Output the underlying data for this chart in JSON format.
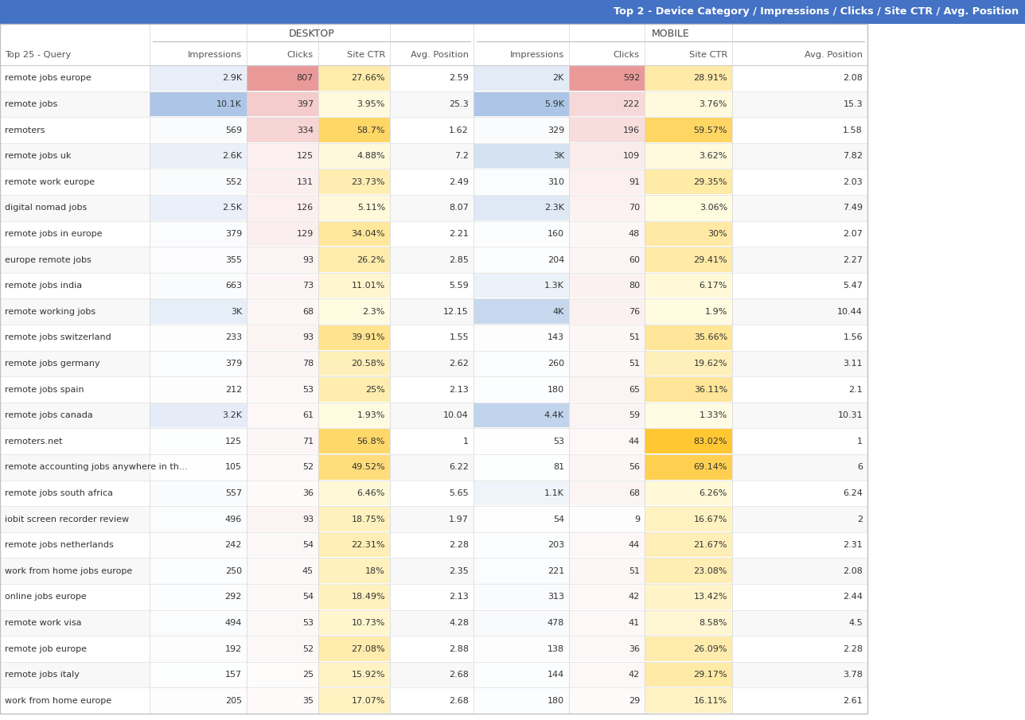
{
  "title": "Top 2 - Device Category / Impressions / Clicks / Site CTR / Avg. Position",
  "title_bg": "#4472c4",
  "title_fg": "#ffffff",
  "desktop_label": "DESKTOP",
  "mobile_label": "MOBILE",
  "columns": [
    "Impressions",
    "Clicks",
    "Site CTR",
    "Avg. Position",
    "Impressions",
    "Clicks",
    "Site CTR",
    "Avg. Position"
  ],
  "rows": [
    {
      "query": "remote jobs europe",
      "d_imp": "2.9K",
      "d_clk": "807",
      "d_ctr": "27.66%",
      "d_pos": "2.59",
      "m_imp": "2K",
      "m_clk": "592",
      "m_ctr": "28.91%",
      "m_pos": "2.08"
    },
    {
      "query": "remote jobs",
      "d_imp": "10.1K",
      "d_clk": "397",
      "d_ctr": "3.95%",
      "d_pos": "25.3",
      "m_imp": "5.9K",
      "m_clk": "222",
      "m_ctr": "3.76%",
      "m_pos": "15.3"
    },
    {
      "query": "remoters",
      "d_imp": "569",
      "d_clk": "334",
      "d_ctr": "58.7%",
      "d_pos": "1.62",
      "m_imp": "329",
      "m_clk": "196",
      "m_ctr": "59.57%",
      "m_pos": "1.58"
    },
    {
      "query": "remote jobs uk",
      "d_imp": "2.6K",
      "d_clk": "125",
      "d_ctr": "4.88%",
      "d_pos": "7.2",
      "m_imp": "3K",
      "m_clk": "109",
      "m_ctr": "3.62%",
      "m_pos": "7.82"
    },
    {
      "query": "remote work europe",
      "d_imp": "552",
      "d_clk": "131",
      "d_ctr": "23.73%",
      "d_pos": "2.49",
      "m_imp": "310",
      "m_clk": "91",
      "m_ctr": "29.35%",
      "m_pos": "2.03"
    },
    {
      "query": "digital nomad jobs",
      "d_imp": "2.5K",
      "d_clk": "126",
      "d_ctr": "5.11%",
      "d_pos": "8.07",
      "m_imp": "2.3K",
      "m_clk": "70",
      "m_ctr": "3.06%",
      "m_pos": "7.49"
    },
    {
      "query": "remote jobs in europe",
      "d_imp": "379",
      "d_clk": "129",
      "d_ctr": "34.04%",
      "d_pos": "2.21",
      "m_imp": "160",
      "m_clk": "48",
      "m_ctr": "30%",
      "m_pos": "2.07"
    },
    {
      "query": "europe remote jobs",
      "d_imp": "355",
      "d_clk": "93",
      "d_ctr": "26.2%",
      "d_pos": "2.85",
      "m_imp": "204",
      "m_clk": "60",
      "m_ctr": "29.41%",
      "m_pos": "2.27"
    },
    {
      "query": "remote jobs india",
      "d_imp": "663",
      "d_clk": "73",
      "d_ctr": "11.01%",
      "d_pos": "5.59",
      "m_imp": "1.3K",
      "m_clk": "80",
      "m_ctr": "6.17%",
      "m_pos": "5.47"
    },
    {
      "query": "remote working jobs",
      "d_imp": "3K",
      "d_clk": "68",
      "d_ctr": "2.3%",
      "d_pos": "12.15",
      "m_imp": "4K",
      "m_clk": "76",
      "m_ctr": "1.9%",
      "m_pos": "10.44"
    },
    {
      "query": "remote jobs switzerland",
      "d_imp": "233",
      "d_clk": "93",
      "d_ctr": "39.91%",
      "d_pos": "1.55",
      "m_imp": "143",
      "m_clk": "51",
      "m_ctr": "35.66%",
      "m_pos": "1.56"
    },
    {
      "query": "remote jobs germany",
      "d_imp": "379",
      "d_clk": "78",
      "d_ctr": "20.58%",
      "d_pos": "2.62",
      "m_imp": "260",
      "m_clk": "51",
      "m_ctr": "19.62%",
      "m_pos": "3.11"
    },
    {
      "query": "remote jobs spain",
      "d_imp": "212",
      "d_clk": "53",
      "d_ctr": "25%",
      "d_pos": "2.13",
      "m_imp": "180",
      "m_clk": "65",
      "m_ctr": "36.11%",
      "m_pos": "2.1"
    },
    {
      "query": "remote jobs canada",
      "d_imp": "3.2K",
      "d_clk": "61",
      "d_ctr": "1.93%",
      "d_pos": "10.04",
      "m_imp": "4.4K",
      "m_clk": "59",
      "m_ctr": "1.33%",
      "m_pos": "10.31"
    },
    {
      "query": "remoters.net",
      "d_imp": "125",
      "d_clk": "71",
      "d_ctr": "56.8%",
      "d_pos": "1",
      "m_imp": "53",
      "m_clk": "44",
      "m_ctr": "83.02%",
      "m_pos": "1"
    },
    {
      "query": "remote accounting jobs anywhere in th...",
      "d_imp": "105",
      "d_clk": "52",
      "d_ctr": "49.52%",
      "d_pos": "6.22",
      "m_imp": "81",
      "m_clk": "56",
      "m_ctr": "69.14%",
      "m_pos": "6"
    },
    {
      "query": "remote jobs south africa",
      "d_imp": "557",
      "d_clk": "36",
      "d_ctr": "6.46%",
      "d_pos": "5.65",
      "m_imp": "1.1K",
      "m_clk": "68",
      "m_ctr": "6.26%",
      "m_pos": "6.24"
    },
    {
      "query": "iobit screen recorder review",
      "d_imp": "496",
      "d_clk": "93",
      "d_ctr": "18.75%",
      "d_pos": "1.97",
      "m_imp": "54",
      "m_clk": "9",
      "m_ctr": "16.67%",
      "m_pos": "2"
    },
    {
      "query": "remote jobs netherlands",
      "d_imp": "242",
      "d_clk": "54",
      "d_ctr": "22.31%",
      "d_pos": "2.28",
      "m_imp": "203",
      "m_clk": "44",
      "m_ctr": "21.67%",
      "m_pos": "2.31"
    },
    {
      "query": "work from home jobs europe",
      "d_imp": "250",
      "d_clk": "45",
      "d_ctr": "18%",
      "d_pos": "2.35",
      "m_imp": "221",
      "m_clk": "51",
      "m_ctr": "23.08%",
      "m_pos": "2.08"
    },
    {
      "query": "online jobs europe",
      "d_imp": "292",
      "d_clk": "54",
      "d_ctr": "18.49%",
      "d_pos": "2.13",
      "m_imp": "313",
      "m_clk": "42",
      "m_ctr": "13.42%",
      "m_pos": "2.44"
    },
    {
      "query": "remote work visa",
      "d_imp": "494",
      "d_clk": "53",
      "d_ctr": "10.73%",
      "d_pos": "4.28",
      "m_imp": "478",
      "m_clk": "41",
      "m_ctr": "8.58%",
      "m_pos": "4.5"
    },
    {
      "query": "remote job europe",
      "d_imp": "192",
      "d_clk": "52",
      "d_ctr": "27.08%",
      "d_pos": "2.88",
      "m_imp": "138",
      "m_clk": "36",
      "m_ctr": "26.09%",
      "m_pos": "2.28"
    },
    {
      "query": "remote jobs italy",
      "d_imp": "157",
      "d_clk": "25",
      "d_ctr": "15.92%",
      "d_pos": "2.68",
      "m_imp": "144",
      "m_clk": "42",
      "m_ctr": "29.17%",
      "m_pos": "3.78"
    },
    {
      "query": "work from home europe",
      "d_imp": "205",
      "d_clk": "35",
      "d_ctr": "17.07%",
      "d_pos": "2.68",
      "m_imp": "180",
      "m_clk": "29",
      "m_ctr": "16.11%",
      "m_pos": "2.61"
    }
  ],
  "imp_values": [
    2900,
    10100,
    569,
    2600,
    552,
    2500,
    379,
    355,
    663,
    3000,
    233,
    379,
    212,
    3200,
    125,
    105,
    557,
    496,
    242,
    250,
    292,
    494,
    192,
    157,
    205
  ],
  "clk_values": [
    807,
    397,
    334,
    125,
    131,
    126,
    129,
    93,
    73,
    68,
    93,
    78,
    53,
    61,
    71,
    52,
    36,
    93,
    54,
    45,
    54,
    53,
    52,
    25,
    35
  ],
  "d_ctr_values": [
    27.66,
    3.95,
    58.7,
    4.88,
    23.73,
    5.11,
    34.04,
    26.2,
    11.01,
    2.3,
    39.91,
    20.58,
    25.0,
    1.93,
    56.8,
    49.52,
    6.46,
    18.75,
    22.31,
    18.0,
    18.49,
    10.73,
    27.08,
    15.92,
    17.07
  ],
  "m_imp_values": [
    2000,
    5900,
    329,
    3000,
    310,
    2300,
    160,
    204,
    1300,
    4000,
    143,
    260,
    180,
    4400,
    53,
    81,
    1100,
    54,
    203,
    221,
    313,
    478,
    138,
    144,
    180
  ],
  "m_clk_values": [
    592,
    222,
    196,
    109,
    91,
    70,
    48,
    60,
    80,
    76,
    51,
    51,
    65,
    59,
    44,
    56,
    68,
    9,
    44,
    51,
    42,
    41,
    36,
    42,
    29
  ],
  "m_ctr_values": [
    28.91,
    3.76,
    59.57,
    3.62,
    29.35,
    3.06,
    30.0,
    29.41,
    6.17,
    1.9,
    35.66,
    19.62,
    36.11,
    1.33,
    83.02,
    69.14,
    6.26,
    16.67,
    21.67,
    23.08,
    13.42,
    8.58,
    26.09,
    29.17,
    16.11
  ]
}
